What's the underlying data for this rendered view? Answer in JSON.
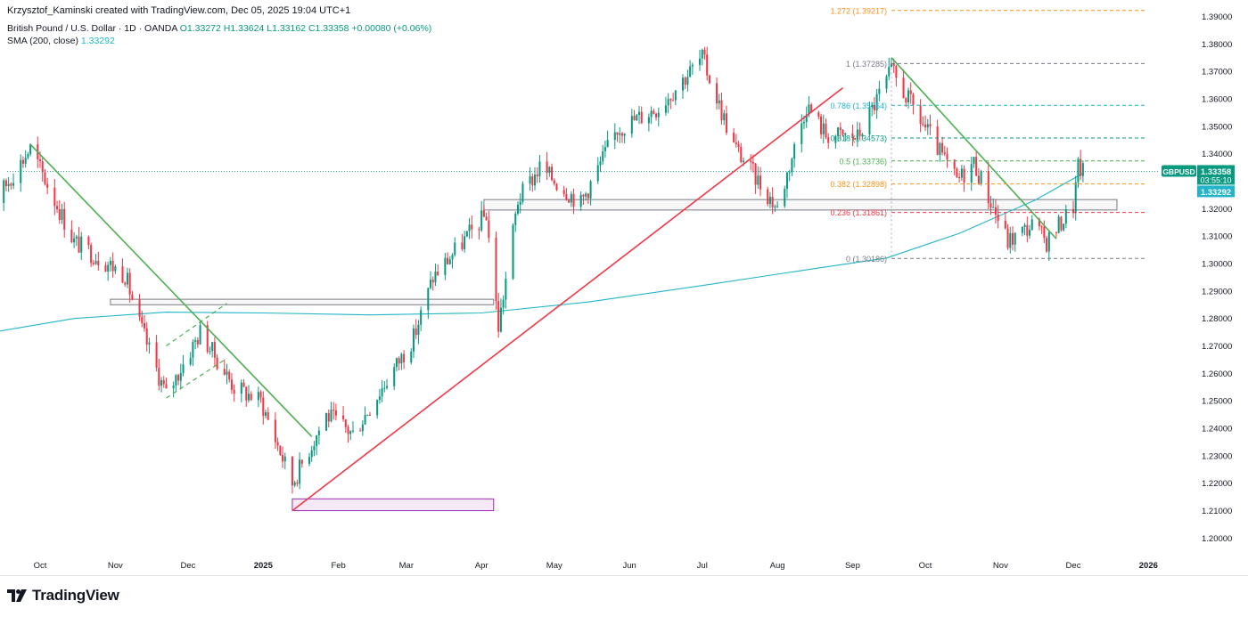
{
  "header": {
    "author_line": "Krzysztof_Kaminski created with TradingView.com, Dec 05, 2025 19:04 UTC+1",
    "symbol_title": "British Pound / U.S. Dollar · 1D · OANDA",
    "ohlc": "O1.33272 H1.33624 L1.33162 C1.33358 +0.00080 (+0.06%)",
    "indicator_name": "SMA (200, close)",
    "indicator_value": "1.33292"
  },
  "branding": {
    "logo_text": "TradingView"
  },
  "chart_data": {
    "type": "candlestick",
    "symbol": "GBPUSD",
    "interval": "1D",
    "ylim": [
      1.193,
      1.3895
    ],
    "y_ticks": [
      "1.20000",
      "1.21000",
      "1.22000",
      "1.23000",
      "1.24000",
      "1.25000",
      "1.26000",
      "1.27000",
      "1.28000",
      "1.29000",
      "1.30000",
      "1.31000",
      "1.32000",
      "1.33000",
      "1.34000",
      "1.35000",
      "1.36000",
      "1.37000",
      "1.38000",
      "1.39000"
    ],
    "x_ticks": [
      {
        "label": "Oct",
        "date": "2024-10-01"
      },
      {
        "label": "Nov",
        "date": "2024-11-01"
      },
      {
        "label": "Dec",
        "date": "2024-12-01"
      },
      {
        "label": "2025",
        "date": "2025-01-01"
      },
      {
        "label": "Feb",
        "date": "2025-02-01"
      },
      {
        "label": "Mar",
        "date": "2025-03-01"
      },
      {
        "label": "Apr",
        "date": "2025-04-01"
      },
      {
        "label": "May",
        "date": "2025-05-01"
      },
      {
        "label": "Jun",
        "date": "2025-06-01"
      },
      {
        "label": "Jul",
        "date": "2025-07-01"
      },
      {
        "label": "Aug",
        "date": "2025-08-01"
      },
      {
        "label": "Sep",
        "date": "2025-09-01"
      },
      {
        "label": "Oct",
        "date": "2025-10-01"
      },
      {
        "label": "Nov",
        "date": "2025-11-01"
      },
      {
        "label": "Dec",
        "date": "2025-12-01"
      },
      {
        "label": "2026",
        "date": "2026-01-01"
      }
    ],
    "close_path_dates": [
      "2024-09-05",
      "2024-09-27",
      "2024-10-15",
      "2024-11-05",
      "2024-11-11",
      "2024-11-22",
      "2024-12-06",
      "2024-12-20",
      "2024-12-31",
      "2025-01-13",
      "2025-01-27",
      "2025-02-07",
      "2025-03-04",
      "2025-03-12",
      "2025-04-03",
      "2025-04-08",
      "2025-04-16",
      "2025-04-25",
      "2025-05-12",
      "2025-05-27",
      "2025-06-13",
      "2025-07-01",
      "2025-07-14",
      "2025-08-01",
      "2025-08-13",
      "2025-08-21",
      "2025-09-03",
      "2025-09-17",
      "2025-10-14",
      "2025-10-21",
      "2025-11-04",
      "2025-11-14",
      "2025-11-20",
      "2025-12-01",
      "2025-12-03",
      "2025-12-05"
    ],
    "close_path_values": [
      1.313,
      1.342,
      1.308,
      1.296,
      1.278,
      1.252,
      1.275,
      1.255,
      1.25,
      1.22,
      1.245,
      1.238,
      1.273,
      1.295,
      1.318,
      1.277,
      1.323,
      1.335,
      1.322,
      1.349,
      1.357,
      1.375,
      1.343,
      1.32,
      1.358,
      1.347,
      1.346,
      1.37,
      1.33,
      1.337,
      1.308,
      1.314,
      1.308,
      1.321,
      1.335,
      1.3336
    ],
    "sma200": {
      "name": "SMA (200, close)",
      "color": "#22b5c9",
      "dates": [
        "2024-09-05",
        "2024-10-15",
        "2024-11-22",
        "2025-01-01",
        "2025-02-14",
        "2025-04-01",
        "2025-05-15",
        "2025-07-01",
        "2025-08-15",
        "2025-09-15",
        "2025-10-15",
        "2025-11-15",
        "2025-12-05"
      ],
      "values": [
        1.274,
        1.28,
        1.2823,
        1.282,
        1.2813,
        1.282,
        1.286,
        1.292,
        1.298,
        1.302,
        1.311,
        1.323,
        1.3329
      ]
    },
    "fibonacci": [
      {
        "level": "1.272",
        "value": 1.39217,
        "label": "1.272 (1.39217)",
        "color": "#f7931a"
      },
      {
        "level": "1",
        "value": 1.37285,
        "label": "1 (1.37285)",
        "color": "#787b86"
      },
      {
        "level": "0.786",
        "value": 1.35764,
        "label": "0.786 (1.35764)",
        "color": "#22b5c9"
      },
      {
        "level": "0.618",
        "value": 1.34573,
        "label": "0.618 (1.34573)",
        "color": "#089981"
      },
      {
        "level": "0.5",
        "value": 1.33736,
        "label": "0.5 (1.33736)",
        "color": "#4caf50"
      },
      {
        "level": "0.382",
        "value": 1.32898,
        "label": "0.382 (1.32898)",
        "color": "#f7931a"
      },
      {
        "level": "0.236",
        "value": 1.31861,
        "label": "0.236 (1.31861)",
        "color": "#f23645"
      },
      {
        "level": "0",
        "value": 1.30186,
        "label": "0 (1.30186)",
        "color": "#787b86"
      }
    ],
    "trendlines": [
      {
        "color": "#4caf50",
        "from": {
          "date": "2024-09-27",
          "value": 1.3434
        },
        "to": {
          "date": "2025-01-21",
          "value": 1.237
        }
      },
      {
        "color": "#4caf50",
        "from": {
          "date": "2025-09-17",
          "value": 1.375
        },
        "to": {
          "date": "2025-11-24",
          "value": 1.309
        }
      },
      {
        "color": "#f23645",
        "from": {
          "date": "2025-01-13",
          "value": 1.21
        },
        "to": {
          "date": "2025-08-28",
          "value": 1.364
        }
      },
      {
        "color": "#4caf50",
        "dashed": true,
        "from": {
          "date": "2024-11-22",
          "value": 1.27
        },
        "to": {
          "date": "2024-12-17",
          "value": 1.2855
        }
      },
      {
        "color": "#4caf50",
        "dashed": true,
        "from": {
          "date": "2024-11-22",
          "value": 1.251
        },
        "to": {
          "date": "2024-12-17",
          "value": 1.2655
        }
      }
    ],
    "zones": [
      {
        "color": "#787b86",
        "from_date": "2024-10-30",
        "to_date": "2025-04-06",
        "top": 1.287,
        "bottom": 1.285
      },
      {
        "color": "#787b86",
        "from_date": "2025-04-02",
        "to_date": "2025-12-19",
        "top": 1.3233,
        "bottom": 1.3195
      },
      {
        "color": "#9c27b0",
        "from_date": "2025-01-13",
        "to_date": "2025-04-06",
        "top": 1.2143,
        "bottom": 1.21
      }
    ],
    "price_tags": [
      {
        "name": "GBPUSD",
        "value": 1.33358,
        "text": "1.33358",
        "countdown": "03:55:10",
        "color": "#089981"
      },
      {
        "name": "SMA",
        "value": 1.33292,
        "text": "1.33292",
        "color": "#22b5c9"
      }
    ],
    "last_price": 1.33358
  }
}
